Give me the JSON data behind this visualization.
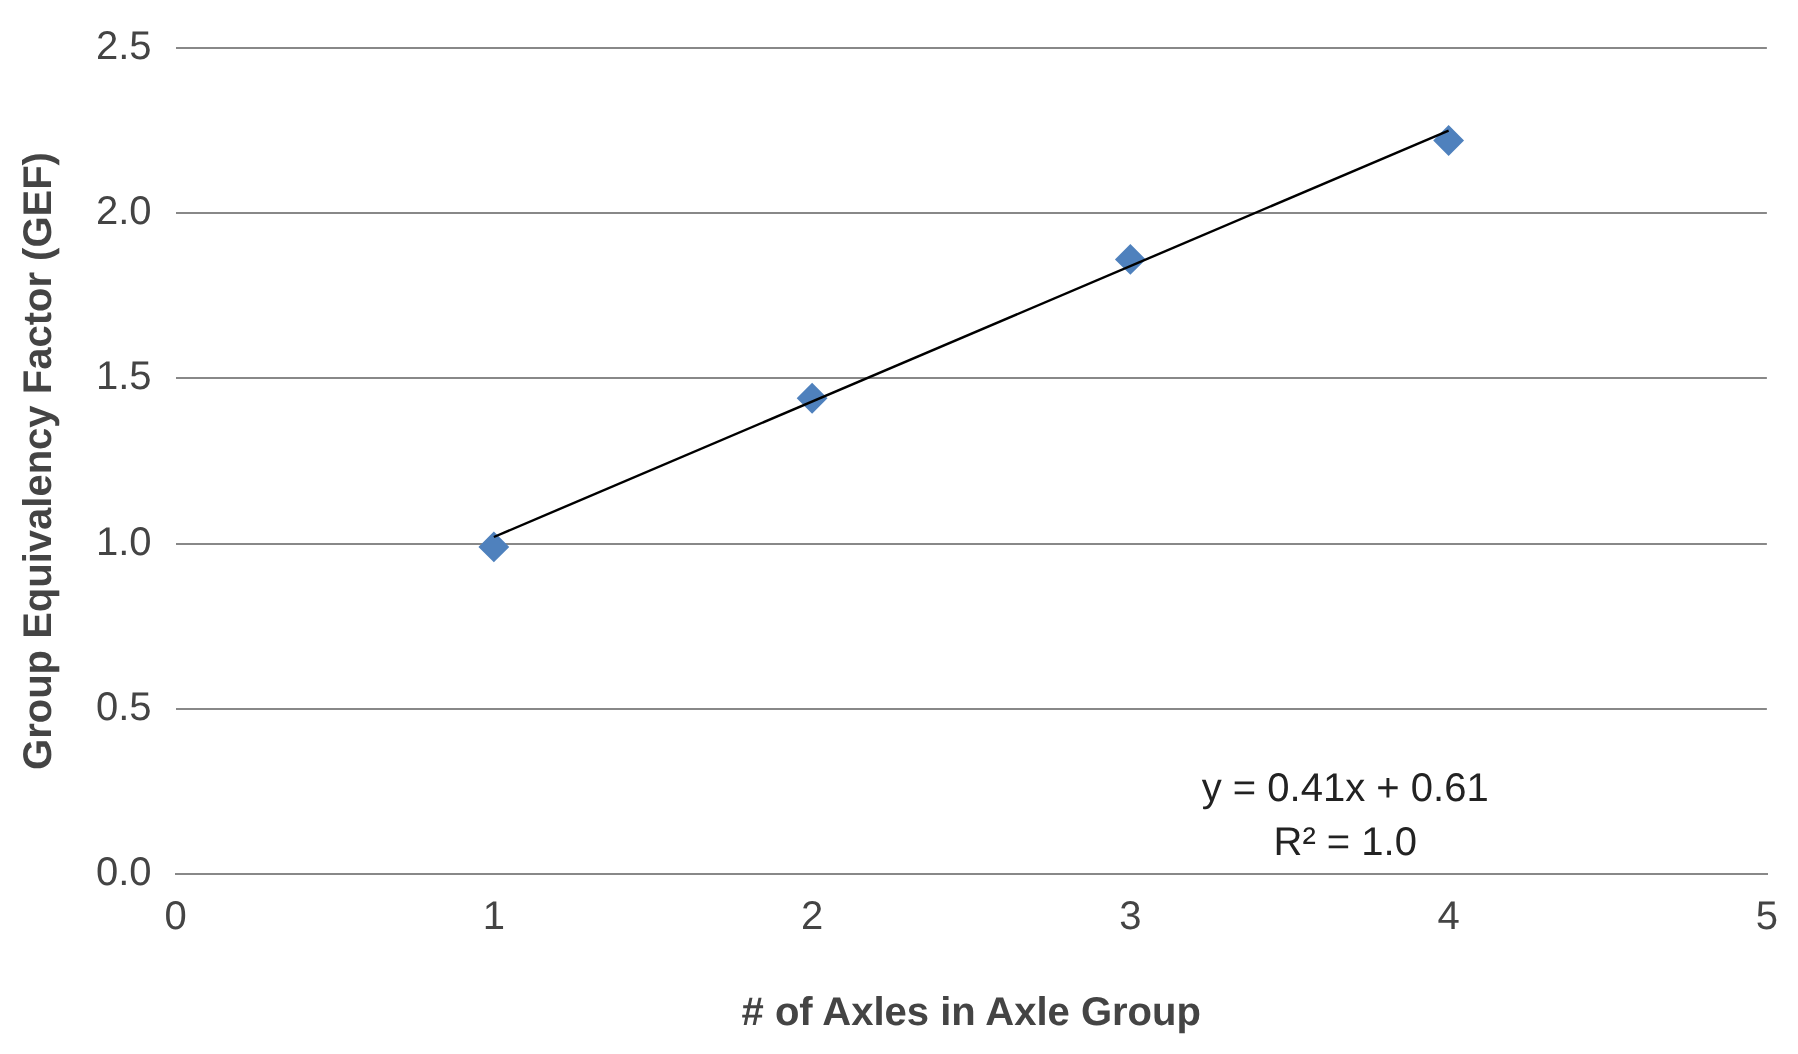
{
  "chart_data": {
    "type": "scatter",
    "xlabel": "# of Axles in Axle Group",
    "ylabel": "Group Equivalency Factor (GEF)",
    "x": [
      1,
      2,
      3,
      4
    ],
    "series": [
      {
        "type": "scatter",
        "color": "#4f81bd",
        "marker": "diamond",
        "values": [
          0.99,
          1.44,
          1.86,
          2.22
        ]
      },
      {
        "type": "line",
        "color": "#000000",
        "marker": "none",
        "x": [
          1,
          4
        ],
        "values": [
          1.02,
          2.25
        ]
      }
    ],
    "xlim": [
      0,
      5
    ],
    "xticks": [
      0,
      1,
      2,
      3,
      4,
      5
    ],
    "ylim": [
      0,
      2.5
    ],
    "yticks": [
      {
        "value": 0,
        "label": "0.0"
      },
      {
        "value": 0.5,
        "label": "0.5"
      },
      {
        "value": 1,
        "label": "1.0"
      },
      {
        "value": 1.5,
        "label": "1.5"
      },
      {
        "value": 2,
        "label": "2.0"
      },
      {
        "value": 2.5,
        "label": "2.5"
      }
    ],
    "grid": "y",
    "legend": false,
    "annotations": [
      "y = 0.41x + 0.61",
      "R² = 1.0"
    ]
  }
}
